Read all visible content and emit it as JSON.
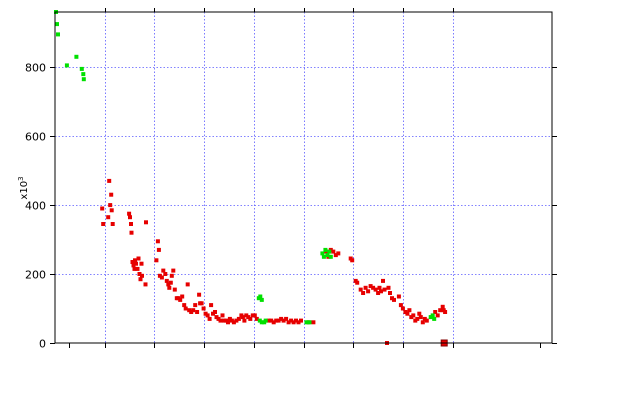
{
  "chart_data": {
    "type": "scatter",
    "title": "",
    "xlabel": "",
    "ylabel": "",
    "y_multiplier": {
      "base": "x10",
      "exponent": "3"
    },
    "xlim": [
      0,
      100
    ],
    "ylim": [
      0,
      960
    ],
    "x_gridlines": [
      10,
      20,
      30,
      40,
      50,
      60,
      70,
      80
    ],
    "y_ticks": [
      0,
      200,
      400,
      600,
      800
    ],
    "grid": true,
    "legend": "none",
    "colors": {
      "red": "#e60000",
      "green": "#00e000",
      "grid": "#5a5aff",
      "axes": "#000000"
    },
    "series": [
      {
        "color": "red",
        "points": [
          [
            9.5,
            390
          ],
          [
            9.7,
            345
          ],
          [
            10.7,
            365
          ],
          [
            10.9,
            470
          ],
          [
            11.1,
            400
          ],
          [
            11.3,
            430
          ],
          [
            11.4,
            385
          ],
          [
            11.6,
            345
          ],
          [
            14.9,
            375
          ],
          [
            15.1,
            365
          ],
          [
            15.3,
            345
          ],
          [
            15.4,
            320
          ],
          [
            15.6,
            235
          ],
          [
            15.8,
            225
          ],
          [
            16.0,
            215
          ],
          [
            16.1,
            240
          ],
          [
            16.3,
            230
          ],
          [
            16.6,
            215
          ],
          [
            16.8,
            245
          ],
          [
            17.0,
            200
          ],
          [
            17.2,
            185
          ],
          [
            17.4,
            230
          ],
          [
            17.5,
            195
          ],
          [
            18.2,
            170
          ],
          [
            18.3,
            350
          ],
          [
            20.4,
            240
          ],
          [
            20.7,
            295
          ],
          [
            20.9,
            270
          ],
          [
            21.1,
            195
          ],
          [
            21.5,
            190
          ],
          [
            21.8,
            210
          ],
          [
            22.2,
            200
          ],
          [
            22.5,
            180
          ],
          [
            22.8,
            170
          ],
          [
            23.0,
            160
          ],
          [
            23.3,
            175
          ],
          [
            23.5,
            195
          ],
          [
            23.8,
            210
          ],
          [
            24.1,
            155
          ],
          [
            24.5,
            130
          ],
          [
            24.8,
            130
          ],
          [
            25.2,
            125
          ],
          [
            25.6,
            135
          ],
          [
            26.0,
            110
          ],
          [
            26.3,
            100
          ],
          [
            26.7,
            170
          ],
          [
            27.0,
            95
          ],
          [
            27.4,
            90
          ],
          [
            27.8,
            95
          ],
          [
            28.2,
            110
          ],
          [
            28.6,
            90
          ],
          [
            29.0,
            140
          ],
          [
            29.2,
            115
          ],
          [
            29.5,
            115
          ],
          [
            29.9,
            100
          ],
          [
            30.3,
            85
          ],
          [
            30.7,
            80
          ],
          [
            31.1,
            70
          ],
          [
            31.4,
            110
          ],
          [
            31.8,
            85
          ],
          [
            32.2,
            90
          ],
          [
            32.5,
            75
          ],
          [
            32.9,
            70
          ],
          [
            33.3,
            65
          ],
          [
            33.7,
            80
          ],
          [
            34.0,
            65
          ],
          [
            34.4,
            65
          ],
          [
            34.8,
            60
          ],
          [
            35.2,
            70
          ],
          [
            35.6,
            65
          ],
          [
            36.0,
            60
          ],
          [
            36.5,
            65
          ],
          [
            37.0,
            70
          ],
          [
            37.5,
            80
          ],
          [
            37.8,
            75
          ],
          [
            38.1,
            65
          ],
          [
            38.5,
            80
          ],
          [
            38.9,
            75
          ],
          [
            39.3,
            70
          ],
          [
            39.8,
            80
          ],
          [
            40.2,
            80
          ],
          [
            40.6,
            70
          ],
          [
            43.0,
            65
          ],
          [
            43.5,
            65
          ],
          [
            44.0,
            60
          ],
          [
            44.5,
            65
          ],
          [
            45.0,
            65
          ],
          [
            45.5,
            70
          ],
          [
            46.0,
            65
          ],
          [
            46.5,
            70
          ],
          [
            47.0,
            60
          ],
          [
            47.5,
            65
          ],
          [
            48.0,
            60
          ],
          [
            48.5,
            65
          ],
          [
            49.0,
            60
          ],
          [
            49.5,
            65
          ],
          [
            51.0,
            60
          ],
          [
            52.0,
            60
          ],
          [
            54.5,
            265
          ],
          [
            55.0,
            250
          ],
          [
            55.5,
            270
          ],
          [
            56.0,
            265
          ],
          [
            56.5,
            255
          ],
          [
            57.0,
            260
          ],
          [
            59.5,
            245
          ],
          [
            59.8,
            240
          ],
          [
            60.5,
            180
          ],
          [
            60.8,
            175
          ],
          [
            61.5,
            155
          ],
          [
            62.0,
            145
          ],
          [
            62.5,
            160
          ],
          [
            63.0,
            150
          ],
          [
            63.5,
            165
          ],
          [
            64.0,
            160
          ],
          [
            64.5,
            155
          ],
          [
            65.0,
            145
          ],
          [
            65.3,
            160
          ],
          [
            65.6,
            150
          ],
          [
            66.0,
            180
          ],
          [
            66.3,
            155
          ],
          [
            66.8,
            0
          ],
          [
            67.1,
            160
          ],
          [
            67.4,
            145
          ],
          [
            67.8,
            130
          ],
          [
            68.2,
            125
          ],
          [
            69.2,
            135
          ],
          [
            69.6,
            110
          ],
          [
            70.0,
            100
          ],
          [
            70.5,
            90
          ],
          [
            70.9,
            85
          ],
          [
            71.3,
            95
          ],
          [
            71.7,
            75
          ],
          [
            72.1,
            80
          ],
          [
            72.5,
            65
          ],
          [
            72.9,
            70
          ],
          [
            73.3,
            85
          ],
          [
            73.6,
            75
          ],
          [
            74.0,
            60
          ],
          [
            74.4,
            70
          ],
          [
            74.8,
            65
          ],
          [
            76.5,
            90
          ],
          [
            77.0,
            80
          ],
          [
            77.5,
            95
          ],
          [
            78.0,
            105
          ],
          [
            78.2,
            95
          ],
          [
            78.5,
            90
          ]
        ]
      },
      {
        "color": "green",
        "points": [
          [
            0.2,
            960
          ],
          [
            0.4,
            925
          ],
          [
            0.6,
            895
          ],
          [
            2.4,
            805
          ],
          [
            4.3,
            830
          ],
          [
            5.4,
            795
          ],
          [
            5.7,
            780
          ],
          [
            5.8,
            765
          ],
          [
            41.0,
            130
          ],
          [
            41.3,
            135
          ],
          [
            41.6,
            125
          ],
          [
            41.2,
            65
          ],
          [
            41.6,
            60
          ],
          [
            42.1,
            60
          ],
          [
            42.4,
            65
          ],
          [
            50.6,
            60
          ],
          [
            51.2,
            60
          ],
          [
            53.8,
            260
          ],
          [
            54.1,
            250
          ],
          [
            54.4,
            270
          ],
          [
            54.8,
            255
          ],
          [
            55.2,
            265
          ],
          [
            55.5,
            250
          ],
          [
            75.6,
            75
          ],
          [
            76.0,
            80
          ],
          [
            76.3,
            70
          ]
        ]
      },
      {
        "color": "red-outline",
        "points": [
          [
            78.3,
            0
          ]
        ]
      }
    ]
  }
}
